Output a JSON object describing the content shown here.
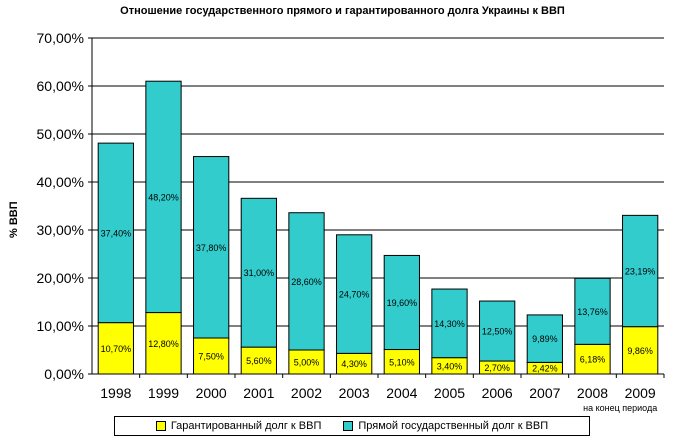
{
  "chart_data": {
    "type": "bar",
    "stacked": true,
    "title": "Отношение государственного прямого и гарантированного долга Украины к ВВП",
    "ylabel": "% ВВП",
    "xlabel": "",
    "ylim": [
      0,
      70
    ],
    "ytick_labels": [
      "0,00%",
      "10,00%",
      "20,00%",
      "30,00%",
      "40,00%",
      "50,00%",
      "60,00%",
      "70,00%"
    ],
    "grid": true,
    "categories": [
      "1998",
      "1999",
      "2000",
      "2001",
      "2002",
      "2003",
      "2004",
      "2005",
      "2006",
      "2007",
      "2008",
      "2009"
    ],
    "category_note": {
      "category": "2009",
      "text": "на конец периода"
    },
    "series": [
      {
        "name": "Гарантированный долг к ВВП",
        "color": "#ffff00",
        "values": [
          10.7,
          12.8,
          7.5,
          5.6,
          5.0,
          4.3,
          5.1,
          3.4,
          2.7,
          2.42,
          6.18,
          9.86
        ],
        "labels": [
          "10,70%",
          "12,80%",
          "7,50%",
          "5,60%",
          "5,00%",
          "4,30%",
          "5,10%",
          "3,40%",
          "2,70%",
          "2,42%",
          "6,18%",
          "9,86%"
        ]
      },
      {
        "name": "Прямой государственный долг к ВВП",
        "color": "#33cccc",
        "values": [
          37.4,
          48.2,
          37.8,
          31.0,
          28.6,
          24.7,
          19.6,
          14.3,
          12.5,
          9.89,
          13.76,
          23.19
        ],
        "labels": [
          "37,40%",
          "48,20%",
          "37,80%",
          "31,00%",
          "28,60%",
          "24,70%",
          "19,60%",
          "14,30%",
          "12,50%",
          "9,89%",
          "13,76%",
          "23,19%"
        ]
      }
    ],
    "legend_position": "bottom"
  }
}
